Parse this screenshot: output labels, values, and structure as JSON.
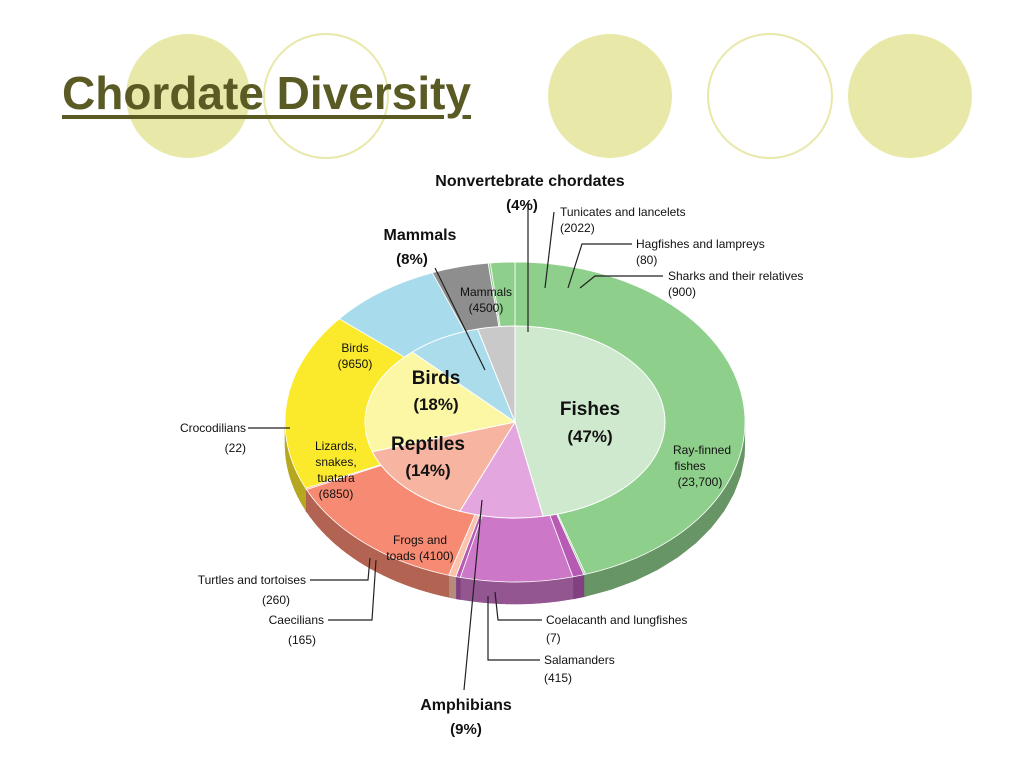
{
  "slide": {
    "title": "Chordate Diversity",
    "accent_color": "#e8e8a8",
    "title_color": "#5a5a24"
  },
  "chart_data": {
    "type": "pie",
    "title": "",
    "inner_groups": [
      {
        "name": "Fishes",
        "percent_label": "(47%)",
        "percent": 47,
        "color": "#cfe9cf"
      },
      {
        "name": "Amphibians",
        "percent_label": "(9%)",
        "percent": 9,
        "color": "#e4a6df"
      },
      {
        "name": "Reptiles",
        "percent_label": "(14%)",
        "percent": 14,
        "color": "#f7b4a0"
      },
      {
        "name": "Birds",
        "percent_label": "(18%)",
        "percent": 18,
        "color": "#fbf7a4"
      },
      {
        "name": "Mammals",
        "percent_label": "(8%)",
        "percent": 8,
        "color": "#aadcec"
      },
      {
        "name": "Nonvertebrate chordates",
        "percent_label": "(4%)",
        "percent": 4,
        "color": "#c9c9c9"
      }
    ],
    "outer_segments": [
      {
        "group": "Fishes",
        "name": "Ray-finned fishes",
        "count": "(23,700)",
        "value": 23700,
        "color": "#8fcf8c"
      },
      {
        "group": "Fishes",
        "name": "Coelacanth and lungfishes",
        "count": "(7)",
        "value": 7,
        "color": "#8fcf8c"
      },
      {
        "group": "Amphibians",
        "name": "Salamanders",
        "count": "(415)",
        "value": 415,
        "color": "#b65ab4"
      },
      {
        "group": "Amphibians",
        "name": "Frogs and toads",
        "count": "(4100)",
        "value": 4100,
        "color": "#cc77c8"
      },
      {
        "group": "Amphibians",
        "name": "Caecilians",
        "count": "(165)",
        "value": 165,
        "color": "#b65ab4"
      },
      {
        "group": "Reptiles",
        "name": "Turtles and tortoises",
        "count": "(260)",
        "value": 260,
        "color": "#fbc3ad"
      },
      {
        "group": "Reptiles",
        "name": "Lizards, snakes, tuatara",
        "count": "(6850)",
        "value": 6850,
        "color": "#f78a72"
      },
      {
        "group": "Reptiles",
        "name": "Crocodilians",
        "count": "(22)",
        "value": 22,
        "color": "#f78a72"
      },
      {
        "group": "Birds",
        "name": "Birds",
        "count": "(9650)",
        "value": 9650,
        "color": "#fbea2c"
      },
      {
        "group": "Mammals",
        "name": "Mammals",
        "count": "(4500)",
        "value": 4500,
        "color": "#a8dcec"
      },
      {
        "group": "Nonvertebrate chordates",
        "name": "Tunicates and lancelets",
        "count": "(2022)",
        "value": 2022,
        "color": "#8e8e8e"
      },
      {
        "group": "Fishes",
        "name": "Hagfishes and lampreys",
        "count": "(80)",
        "value": 80,
        "color": "#8fcf8c"
      },
      {
        "group": "Fishes",
        "name": "Sharks and their relatives",
        "count": "(900)",
        "value": 900,
        "color": "#8fcf8c"
      }
    ],
    "inner_labels": {
      "fishes": "Fishes",
      "fishes_pct": "(47%)",
      "birds": "Birds",
      "birds_pct": "(18%)",
      "reptiles": "Reptiles",
      "reptiles_pct": "(14%)"
    },
    "outer_labels": {
      "mammals_name": "Mammals",
      "mammals_count": "(4500)",
      "birds_name": "Birds",
      "birds_count": "(9650)",
      "lizards_1": "Lizards,",
      "lizards_2": "snakes,",
      "lizards_3": "tuatara",
      "lizards_count": "(6850)",
      "frogs_1": "Frogs and",
      "frogs_2": "toads (4100)",
      "rayfinned_1": "Ray-finned",
      "rayfinned_2": "fishes",
      "rayfinned_count": "(23,700)"
    },
    "callouts": {
      "nonvert_name": "Nonvertebrate chordates",
      "nonvert_pct": "(4%)",
      "mammals_name": "Mammals",
      "mammals_pct": "(8%)",
      "amphibians_name": "Amphibians",
      "amphibians_pct": "(9%)",
      "tunicates_name": "Tunicates and lancelets",
      "tunicates_count": "(2022)",
      "hagfishes_name": "Hagfishes and lampreys",
      "hagfishes_count": "(80)",
      "sharks_name": "Sharks and their relatives",
      "sharks_count": "(900)",
      "crocodilians_name": "Crocodilians",
      "crocodilians_count": "(22)",
      "turtles_name": "Turtles and tortoises",
      "turtles_count": "(260)",
      "caecilians_name": "Caecilians",
      "caecilians_count": "(165)",
      "coelacanth_name": "Coelacanth and lungfishes",
      "coelacanth_count": "(7)",
      "salamanders_name": "Salamanders",
      "salamanders_count": "(415)"
    }
  }
}
